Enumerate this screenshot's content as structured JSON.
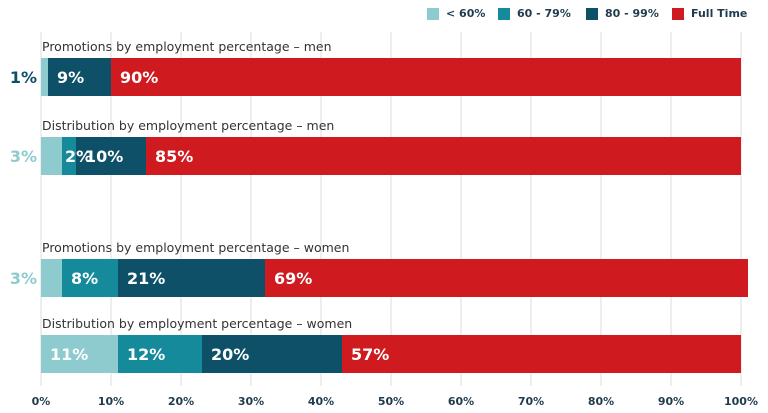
{
  "chart_data": {
    "type": "bar",
    "orientation": "horizontal",
    "stacked": true,
    "legend_position": "top-right",
    "grid": true,
    "xlim": [
      0,
      100
    ],
    "x_ticks": [
      "0%",
      "10%",
      "20%",
      "30%",
      "40%",
      "50%",
      "60%",
      "70%",
      "80%",
      "90%",
      "100%"
    ],
    "series": [
      {
        "name": "< 60%",
        "color": "#8ecbce"
      },
      {
        "name": "60 - 79%",
        "color": "#148a9b"
      },
      {
        "name": "80 - 99%",
        "color": "#0d5068"
      },
      {
        "name": "Full Time",
        "color": "#cf1a1f"
      }
    ],
    "bars": [
      {
        "category": "Promotions by employment percentage – men",
        "values": [
          1,
          0,
          9,
          90
        ],
        "labels": [
          "1%",
          "",
          "9%",
          "90%"
        ]
      },
      {
        "category": "Distribution by employment percentage – men",
        "values": [
          3,
          2,
          10,
          85
        ],
        "labels": [
          "3%",
          "2%",
          "10%",
          "85%"
        ]
      },
      {
        "category": "Promotions by employment percentage – women",
        "values": [
          3,
          8,
          21,
          69
        ],
        "labels": [
          "3%",
          "8%",
          "21%",
          "69%"
        ]
      },
      {
        "category": "Distribution by employment percentage – women",
        "values": [
          11,
          12,
          20,
          57
        ],
        "labels": [
          "11%",
          "12%",
          "20%",
          "57%"
        ]
      }
    ]
  }
}
